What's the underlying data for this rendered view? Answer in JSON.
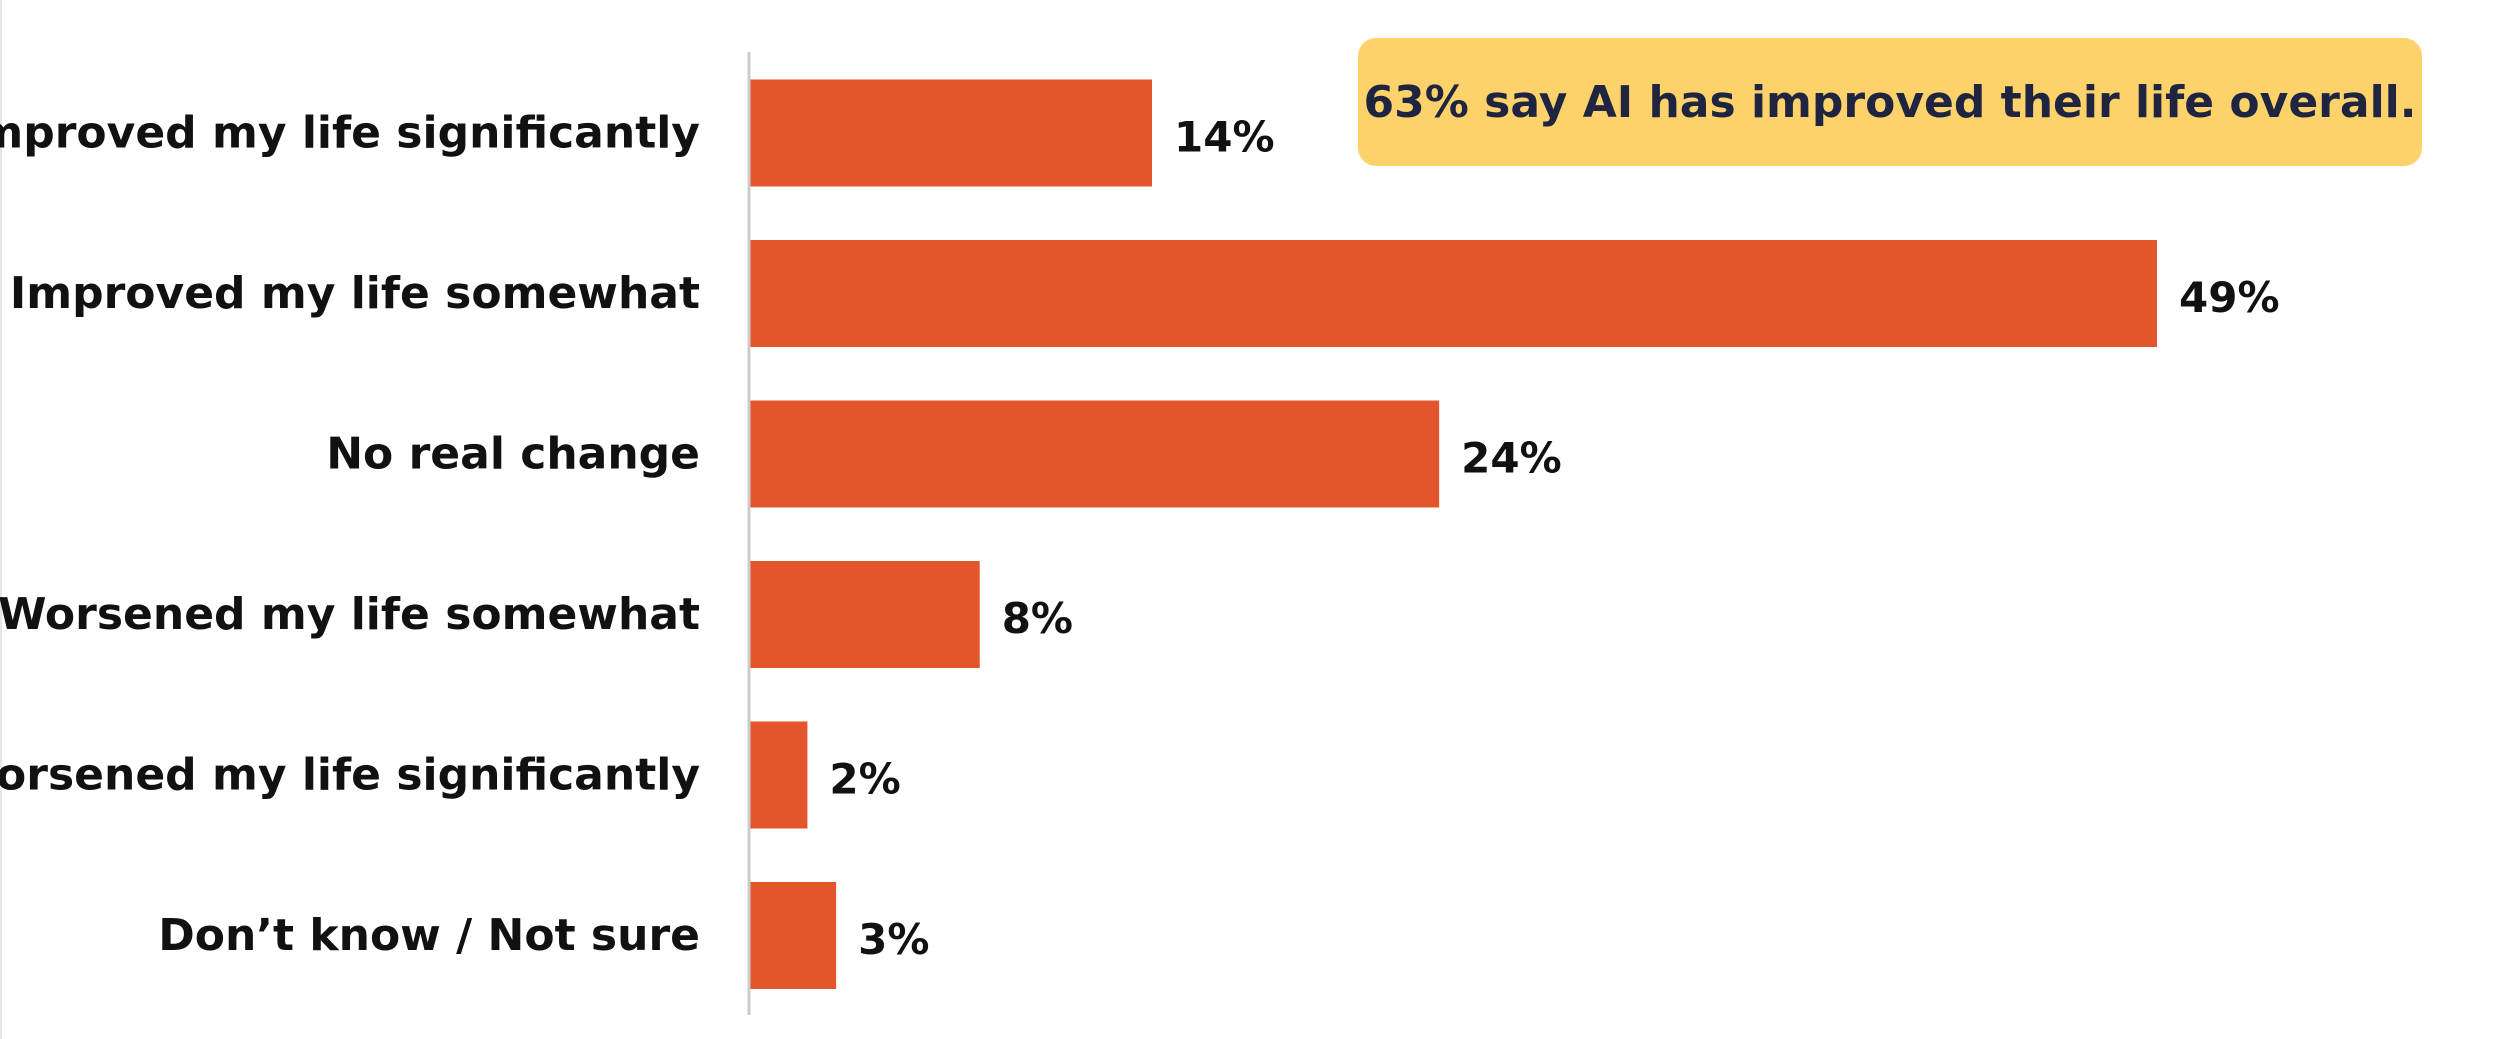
{
  "chart_data": {
    "type": "bar",
    "orientation": "horizontal",
    "categories": [
      "Improved my life significantly",
      "Improved my life somewhat",
      "No real change",
      "Worsened my life somewhat",
      "Worsened my life significantly",
      "Don’t know / Not sure"
    ],
    "values": [
      14,
      49,
      24,
      8,
      2,
      3
    ],
    "value_labels": [
      "14%",
      "49%",
      "24%",
      "8%",
      "2%",
      "3%"
    ],
    "unit": "%",
    "xlim": [
      0,
      49
    ],
    "grid": false,
    "legend": "none",
    "annotation": "63% say AI has improved their life overall."
  },
  "colors": {
    "bar": "#e3552a",
    "callout_bg": "#fed26b",
    "callout_text": "#1f2540",
    "axis": "#cccccc",
    "text": "#111111"
  }
}
